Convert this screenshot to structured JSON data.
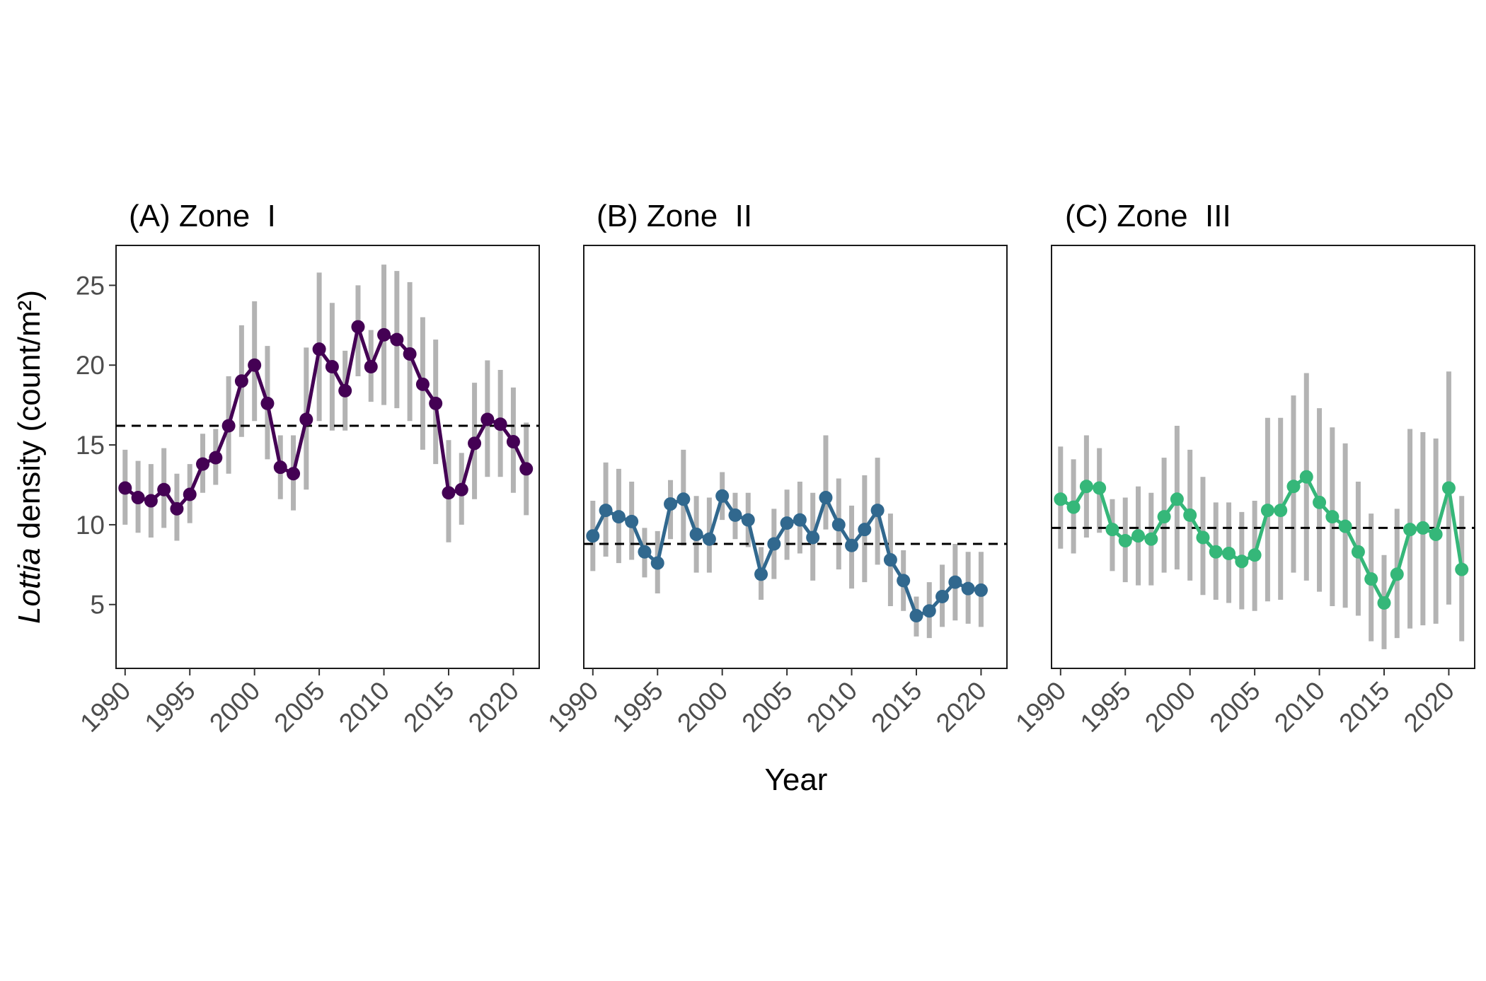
{
  "chart_data": {
    "type": "line",
    "xlabel": "Year",
    "ylabel": {
      "italic": "Lottia",
      "rest": " density (count/m²)"
    },
    "x_ticks": [
      1990,
      1995,
      2000,
      2005,
      2010,
      2015,
      2020
    ],
    "y_ticks": [
      5,
      10,
      15,
      20,
      25
    ],
    "xlim": [
      1989.3,
      2022.0
    ],
    "ylim": [
      1.0,
      27.5
    ],
    "grid": false,
    "error_bar_color": "#b3b3b3",
    "reference_line_style": "dashed",
    "panels": [
      {
        "title": "(A) Zone  I",
        "color": "#440154",
        "mean_line": 16.2,
        "x": [
          1990,
          1991,
          1992,
          1993,
          1994,
          1995,
          1996,
          1997,
          1998,
          1999,
          2000,
          2001,
          2002,
          2003,
          2004,
          2005,
          2006,
          2007,
          2008,
          2009,
          2010,
          2011,
          2012,
          2013,
          2014,
          2015,
          2016,
          2017,
          2018,
          2019,
          2020,
          2021
        ],
        "y": [
          12.3,
          11.7,
          11.5,
          12.2,
          11.0,
          11.9,
          13.8,
          14.2,
          16.2,
          19.0,
          20.0,
          17.6,
          13.6,
          13.2,
          16.6,
          21.0,
          19.9,
          18.4,
          22.4,
          19.9,
          21.9,
          21.6,
          20.7,
          18.8,
          17.6,
          12.0,
          12.2,
          15.1,
          16.6,
          16.3,
          15.2,
          13.5
        ],
        "lower": [
          10.0,
          9.5,
          9.2,
          9.8,
          9.0,
          10.1,
          12.0,
          12.5,
          13.2,
          15.5,
          16.5,
          14.1,
          11.6,
          10.9,
          12.2,
          16.5,
          15.9,
          15.9,
          19.3,
          17.7,
          17.5,
          17.3,
          16.5,
          14.7,
          13.8,
          8.9,
          10.0,
          11.6,
          13.0,
          13.0,
          12.0,
          10.6
        ],
        "upper": [
          14.7,
          14.0,
          13.8,
          14.8,
          13.2,
          13.8,
          15.7,
          16.0,
          19.3,
          22.5,
          24.0,
          21.2,
          15.6,
          15.6,
          21.1,
          25.8,
          23.9,
          20.9,
          25.0,
          22.2,
          26.3,
          25.9,
          25.2,
          23.0,
          21.6,
          15.3,
          14.5,
          18.9,
          20.3,
          19.7,
          18.6,
          16.4
        ]
      },
      {
        "title": "(B) Zone  II",
        "color": "#31688e",
        "mean_line": 8.8,
        "x": [
          1990,
          1991,
          1992,
          1993,
          1994,
          1995,
          1996,
          1997,
          1998,
          1999,
          2000,
          2001,
          2002,
          2003,
          2004,
          2005,
          2006,
          2007,
          2008,
          2009,
          2010,
          2011,
          2012,
          2013,
          2014,
          2015,
          2016,
          2017,
          2018,
          2019,
          2020
        ],
        "y": [
          9.3,
          10.9,
          10.5,
          10.2,
          8.3,
          7.6,
          11.3,
          11.6,
          9.4,
          9.1,
          11.8,
          10.6,
          10.3,
          6.9,
          8.8,
          10.1,
          10.3,
          9.2,
          11.7,
          10.0,
          8.7,
          9.7,
          10.9,
          7.8,
          6.5,
          4.3,
          4.6,
          5.5,
          6.4,
          6.0,
          5.9
        ],
        "lower": [
          7.1,
          8.0,
          7.6,
          7.8,
          6.7,
          5.7,
          9.1,
          8.7,
          7.0,
          7.0,
          10.3,
          9.1,
          8.6,
          5.3,
          6.6,
          7.8,
          8.2,
          6.5,
          9.7,
          7.2,
          6.0,
          6.4,
          7.5,
          4.9,
          4.6,
          3.0,
          2.9,
          3.6,
          4.0,
          3.8,
          3.6
        ],
        "upper": [
          11.5,
          13.9,
          13.5,
          12.7,
          9.8,
          9.6,
          12.8,
          14.7,
          11.8,
          11.7,
          13.3,
          12.0,
          12.0,
          8.6,
          11.0,
          12.2,
          12.7,
          12.0,
          15.6,
          12.9,
          11.2,
          13.1,
          14.2,
          10.7,
          8.4,
          5.5,
          6.4,
          7.5,
          8.8,
          8.3,
          8.3
        ]
      },
      {
        "title": "(C) Zone  III",
        "color": "#35b779",
        "mean_line": 9.8,
        "x": [
          1990,
          1991,
          1992,
          1993,
          1994,
          1995,
          1996,
          1997,
          1998,
          1999,
          2000,
          2001,
          2002,
          2003,
          2004,
          2005,
          2006,
          2007,
          2008,
          2009,
          2010,
          2011,
          2012,
          2013,
          2014,
          2015,
          2016,
          2017,
          2018,
          2019,
          2020,
          2021
        ],
        "y": [
          11.6,
          11.1,
          12.4,
          12.3,
          9.7,
          9.0,
          9.3,
          9.1,
          10.5,
          11.6,
          10.6,
          9.2,
          8.3,
          8.2,
          7.7,
          8.1,
          10.9,
          10.9,
          12.4,
          13.0,
          11.4,
          10.5,
          9.9,
          8.3,
          6.6,
          5.1,
          6.9,
          9.7,
          9.8,
          9.4,
          12.3,
          7.2
        ],
        "lower": [
          8.5,
          8.2,
          9.2,
          9.5,
          7.1,
          6.4,
          6.2,
          6.2,
          7.0,
          7.2,
          6.5,
          5.6,
          5.3,
          5.1,
          4.7,
          4.6,
          5.2,
          5.3,
          7.0,
          6.5,
          5.8,
          4.9,
          4.8,
          4.3,
          2.7,
          2.2,
          2.9,
          3.5,
          3.7,
          3.8,
          5.0,
          2.7
        ],
        "upper": [
          14.9,
          14.1,
          15.6,
          14.8,
          11.6,
          11.7,
          12.4,
          12.0,
          14.2,
          16.2,
          14.7,
          13.0,
          11.4,
          11.4,
          10.8,
          11.5,
          16.7,
          16.7,
          18.1,
          19.5,
          17.3,
          16.1,
          15.1,
          12.7,
          10.7,
          8.1,
          11.0,
          16.0,
          15.8,
          15.4,
          19.6,
          11.8
        ]
      }
    ]
  }
}
